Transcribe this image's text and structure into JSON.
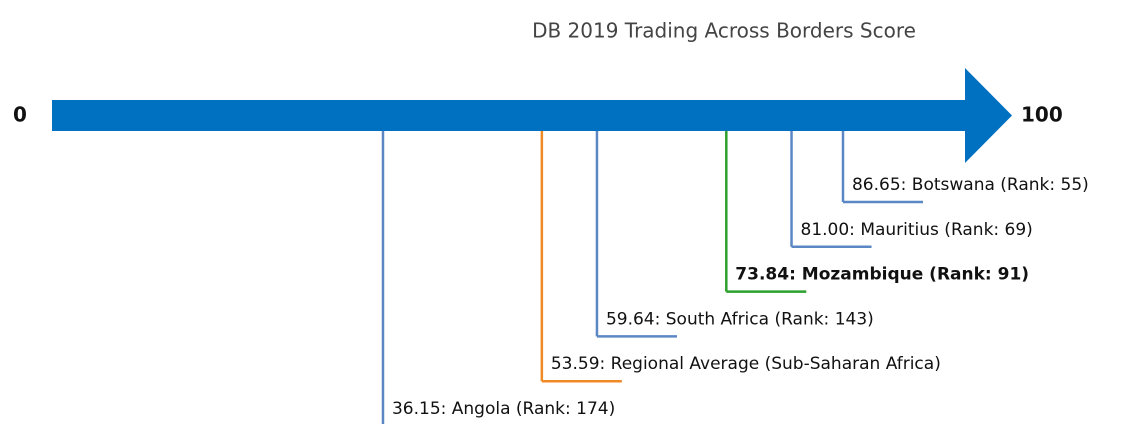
{
  "chart_data": {
    "type": "scale",
    "title": "DB 2019 Trading Across Borders Score",
    "categories": [
      "Botswana",
      "Mauritius",
      "Mozambique",
      "South Africa",
      "Regional Average",
      "Angola"
    ],
    "values": [
      86.65,
      81.0,
      73.84,
      59.64,
      53.59,
      36.15
    ],
    "value_labels": [
      "86.65: Botswana (Rank: 55)",
      "81.00: Mauritius (Rank: 69)",
      "73.84: Mozambique (Rank: 91)",
      "59.64: South Africa (Rank: 143)",
      "53.59: Regional Average (Sub-Saharan Africa)",
      "36.15: Angola (Rank: 174)"
    ],
    "colors": [
      "#5b87c5",
      "#5b87c5",
      "#2ca02c",
      "#5b87c5",
      "#f08a24",
      "#5b87c5"
    ],
    "bold": [
      false,
      false,
      true,
      false,
      false,
      false
    ],
    "arrow_color": "#0070c0",
    "xlim": [
      0,
      100
    ],
    "xticks": [
      0,
      100
    ]
  }
}
